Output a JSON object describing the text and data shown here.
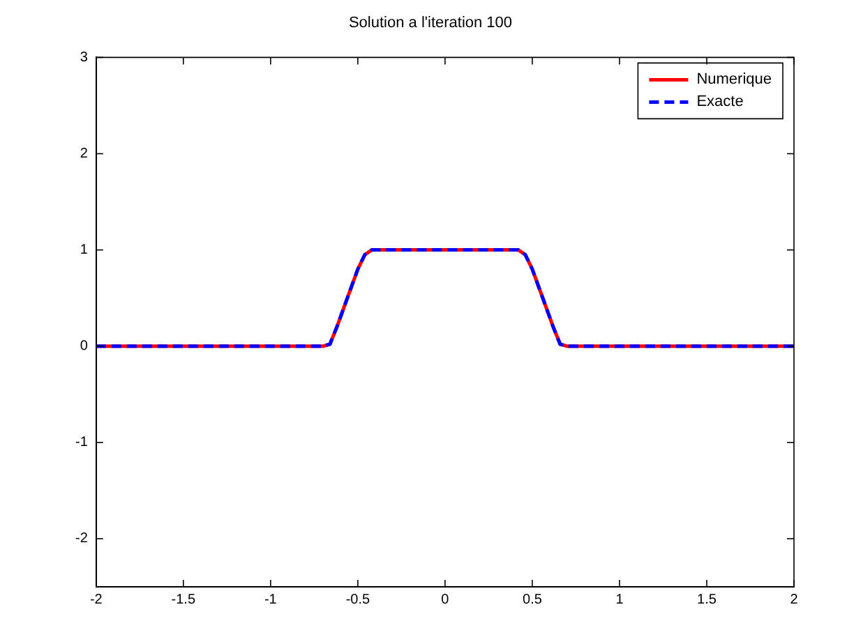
{
  "chart_data": {
    "type": "line",
    "title": "Solution a l'iteration 100",
    "xlim": [
      -2,
      2
    ],
    "xticks": [
      -2,
      -1.5,
      -1,
      -0.5,
      0,
      0.5,
      1,
      1.5,
      2
    ],
    "ylim": [
      -2.5,
      3
    ],
    "yticks": [
      -2,
      -1,
      0,
      1,
      2,
      3
    ],
    "grid": false,
    "legend": "top right",
    "marker": "none",
    "series": [
      {
        "name": "Numerique",
        "color": "#ff0000",
        "line_style": "solid",
        "x": [
          -2,
          -0.7,
          -0.66,
          -0.62,
          -0.56,
          -0.5,
          -0.46,
          -0.42,
          0.42,
          0.46,
          0.5,
          0.56,
          0.62,
          0.66,
          0.7,
          2
        ],
        "values": [
          0,
          0,
          0.02,
          0.2,
          0.5,
          0.8,
          0.95,
          1,
          1,
          0.95,
          0.8,
          0.5,
          0.2,
          0.02,
          0,
          0
        ]
      },
      {
        "name": "Exacte",
        "color": "#0000ff",
        "line_style": "dashed",
        "x": [
          -2,
          -0.7,
          -0.66,
          -0.62,
          -0.56,
          -0.5,
          -0.46,
          -0.42,
          0.42,
          0.46,
          0.5,
          0.56,
          0.62,
          0.66,
          0.7,
          2
        ],
        "values": [
          0,
          0,
          0.02,
          0.2,
          0.5,
          0.8,
          0.95,
          1,
          1,
          0.95,
          0.8,
          0.5,
          0.2,
          0.02,
          0,
          0
        ]
      }
    ]
  }
}
